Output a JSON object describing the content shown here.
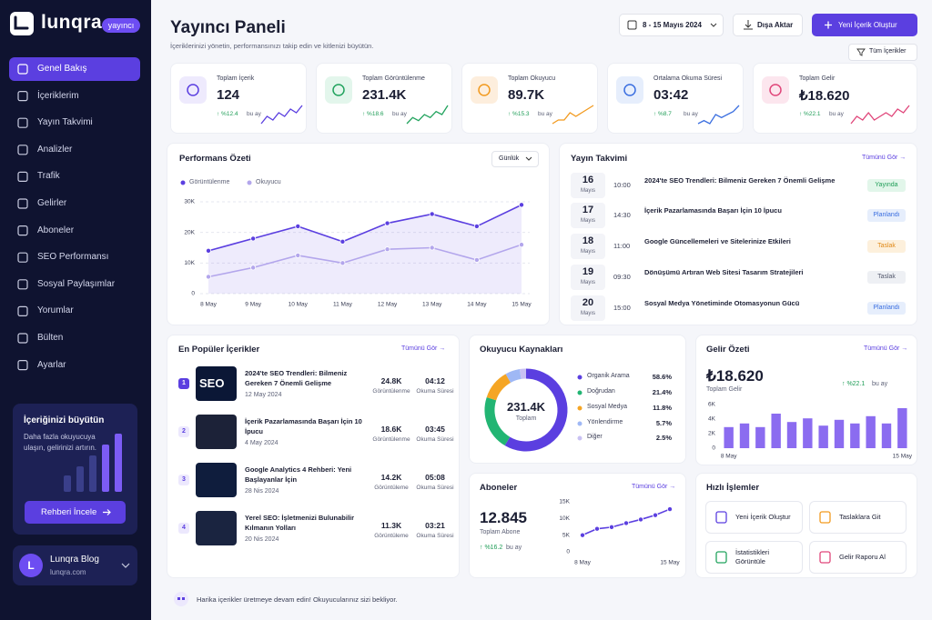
{
  "sidebar": {
    "brand": "lunqra",
    "badge": "yayıncı",
    "menu": [
      "Genel Bakış",
      "İçeriklerim",
      "Yayın Takvimi",
      "Analizler",
      "Trafik",
      "Gelirler",
      "Aboneler",
      "SEO Performansı",
      "Sosyal Paylaşımlar",
      "Yorumlar",
      "Bülten",
      "Ayarlar"
    ],
    "promo": {
      "title": "İçeriğinizi büyütün",
      "text": "Daha fazla okuyucuya ulaşın, gelirinizi artırın.",
      "button": "Rehberi İncele"
    },
    "profile": {
      "initial": "L",
      "name": "Lunqra Blog",
      "site": "lunqra.com"
    }
  },
  "header": {
    "title": "Yayıncı Paneli",
    "subtitle": "İçeriklerinizi yönetin, performansınızı takip edin ve kitlenizi büyütün.",
    "date_range": "8 - 15 Mayıs 2024",
    "export": "Dışa Aktar",
    "create": "Yeni İçerik Oluştur",
    "filter": "Tüm İçerikler"
  },
  "stats": [
    {
      "label": "Toplam İçerik",
      "value": "124",
      "change": "↑ %12.4",
      "period": "bu ay",
      "color": "#5b3fe0",
      "bg": "#eeeafd",
      "trend": [
        3,
        5,
        4,
        6,
        5,
        7,
        6,
        8
      ]
    },
    {
      "label": "Toplam Görüntülenme",
      "value": "231.4K",
      "change": "↑ %18.6",
      "period": "bu ay",
      "color": "#22a35e",
      "bg": "#e3f6ec",
      "trend": [
        2,
        4,
        3,
        5,
        4,
        6,
        5,
        8
      ]
    },
    {
      "label": "Toplam Okuyucu",
      "value": "89.7K",
      "change": "↑ %15.3",
      "period": "bu ay",
      "color": "#f29a1f",
      "bg": "#fdeedd",
      "trend": [
        2,
        3,
        3,
        5,
        4,
        5,
        6,
        7
      ]
    },
    {
      "label": "Ortalama Okuma Süresi",
      "value": "03:42",
      "change": "↑ %8.7",
      "period": "bu ay",
      "color": "#3b6fe0",
      "bg": "#e6eefc",
      "trend": [
        2,
        3,
        2,
        5,
        4,
        5,
        6,
        8
      ]
    },
    {
      "label": "Toplam Gelir",
      "value": "₺18.620",
      "change": "↑ %22.1",
      "period": "bu ay",
      "color": "#e0467a",
      "bg": "#fce6ee",
      "trend": [
        4,
        6,
        5,
        7,
        5,
        6,
        7,
        6,
        8,
        7,
        9
      ]
    }
  ],
  "performance": {
    "type": "line",
    "title": "Performans Özeti",
    "period": "Günlük",
    "categories": [
      "8 May",
      "9 May",
      "10 May",
      "11 May",
      "12 May",
      "13 May",
      "14 May",
      "15 May"
    ],
    "series": [
      {
        "name": "Görüntülenme",
        "color": "#5b3fe0",
        "values": [
          14000,
          18000,
          22000,
          17000,
          23000,
          26000,
          22000,
          29000
        ]
      },
      {
        "name": "Okuyucu",
        "color": "#b3a6ec",
        "values": [
          5500,
          8500,
          12500,
          10000,
          14500,
          15000,
          11000,
          16000
        ]
      }
    ],
    "ylim": [
      0,
      30000
    ],
    "yticks": [
      0,
      {
        "value": 10000,
        "label": "10K"
      },
      {
        "value": 20000,
        "label": "20K"
      },
      {
        "value": 30000,
        "label": "30K"
      }
    ],
    "grid": true
  },
  "schedule": {
    "title": "Yayın Takvimi",
    "link": "Tümünü Gör →",
    "items": [
      {
        "day": "16",
        "month": "Mayıs",
        "time": "10:00",
        "title": "2024'te SEO Trendleri: Bilmeniz Gereken 7 Önemli Gelişme",
        "status": "Yayında",
        "color": "#1f9d57",
        "bg": "#e2f6ea"
      },
      {
        "day": "17",
        "month": "Mayıs",
        "time": "14:30",
        "title": "İçerik Pazarlamasında Başarı İçin 10 İpucu",
        "status": "Planlandı",
        "color": "#3b6fe0",
        "bg": "#e6eefc"
      },
      {
        "day": "18",
        "month": "Mayıs",
        "time": "11:00",
        "title": "Google Güncellemeleri ve Sitelerinize Etkileri",
        "status": "Taslak",
        "color": "#e08a1a",
        "bg": "#fdf0dc"
      },
      {
        "day": "19",
        "month": "Mayıs",
        "time": "09:30",
        "title": "Dönüşümü Artıran Web Sitesi Tasarım Stratejileri",
        "status": "Taslak",
        "color": "#555a6e",
        "bg": "#eef0f4"
      },
      {
        "day": "20",
        "month": "Mayıs",
        "time": "15:00",
        "title": "Sosyal Medya Yönetiminde Otomasyonun Gücü",
        "status": "Planlandı",
        "color": "#3b6fe0",
        "bg": "#e6eefc"
      }
    ]
  },
  "popular": {
    "title": "En Popüler İçerikler",
    "link": "Tümünü Gör →",
    "items": [
      {
        "rank": 1,
        "thumb_label": "SEO",
        "title": "2024'te SEO Trendleri: Bilmeniz Gereken 7 Önemli Gelişme",
        "date": "12 May 2024",
        "views": "24.8K",
        "views_label": "Görüntülenme",
        "time": "04:12",
        "time_label": "Okuma Süresi"
      },
      {
        "rank": 2,
        "title": "İçerik Pazarlamasında Başarı İçin 10 İpucu",
        "date": "4 May 2024",
        "views": "18.6K",
        "views_label": "Görüntülenme",
        "time": "03:45",
        "time_label": "Okuma Süresi"
      },
      {
        "rank": 3,
        "title": "Google Analytics 4 Rehberi: Yeni Başlayanlar İçin",
        "date": "28 Nis 2024",
        "views": "14.2K",
        "views_label": "Görüntüleme",
        "time": "05:08",
        "time_label": "Okuma Süresi"
      },
      {
        "rank": 4,
        "title": "Yerel SEO: İşletmenizi Bulunabilir Kılmanın Yolları",
        "date": "20 Nis 2024",
        "views": "11.3K",
        "views_label": "Görüntüleme",
        "time": "03:21",
        "time_label": "Okuma Süresi"
      }
    ]
  },
  "sources": {
    "type": "pie",
    "title": "Okuyucu Kaynakları",
    "total": "231.4K",
    "total_label": "Toplam",
    "categories": [
      "Organik Arama",
      "Doğrudan",
      "Sosyal Medya",
      "Yönlendirme",
      "Diğer"
    ],
    "values": [
      58.6,
      21.4,
      11.8,
      5.7,
      2.5
    ],
    "value_labels": [
      "58.6%",
      "21.4%",
      "11.8%",
      "5.7%",
      "2.5%"
    ],
    "colors": [
      "#5b3fe0",
      "#22b573",
      "#f5a524",
      "#9fb8f5",
      "#c9c1f3"
    ]
  },
  "revenue": {
    "type": "bar",
    "title": "Gelir Özeti",
    "link": "Tümünü Gör →",
    "total": "₺18.620",
    "total_label": "Toplam Gelir",
    "change": "↑ %22.1",
    "period": "bu ay",
    "categories": [
      "8 May",
      null,
      null,
      null,
      null,
      null,
      null,
      null,
      null,
      null,
      null,
      "15 May"
    ],
    "values": [
      2900,
      3400,
      2900,
      4750,
      3600,
      4100,
      3100,
      3900,
      3400,
      4400,
      3400,
      5500
    ],
    "ylim": [
      0,
      6000
    ],
    "yticks": [
      0,
      {
        "value": 2000,
        "label": "2K"
      },
      {
        "value": 4000,
        "label": "4K"
      },
      {
        "value": 6000,
        "label": "6K"
      }
    ],
    "color": "#8b6cf0"
  },
  "subscribers": {
    "type": "line",
    "title": "Aboneler",
    "link": "Tümünü Gör →",
    "total": "12.845",
    "total_label": "Toplam Abone",
    "change": "↑ %16.2",
    "period": "bu ay",
    "categories": [
      "8 May",
      null,
      null,
      null,
      null,
      null,
      "15 May"
    ],
    "values": [
      5000,
      6900,
      7400,
      8600,
      9700,
      11000,
      12800
    ],
    "ylim": [
      0,
      15000
    ],
    "yticks": [
      0,
      {
        "value": 5000,
        "label": "5K"
      },
      {
        "value": 10000,
        "label": "10K"
      },
      {
        "value": 15000,
        "label": "15K"
      }
    ],
    "color": "#5b3fe0"
  },
  "quick_actions": {
    "title": "Hızlı İşlemler",
    "items": [
      "Yeni İçerik Oluştur",
      "Taslaklara Git",
      "İstatistikleri Görüntüle",
      "Gelir Raporu Al"
    ]
  },
  "footer": {
    "text": "Harika içerikler üretmeye devam edin! Okuyucularınız sizi bekliyor."
  }
}
